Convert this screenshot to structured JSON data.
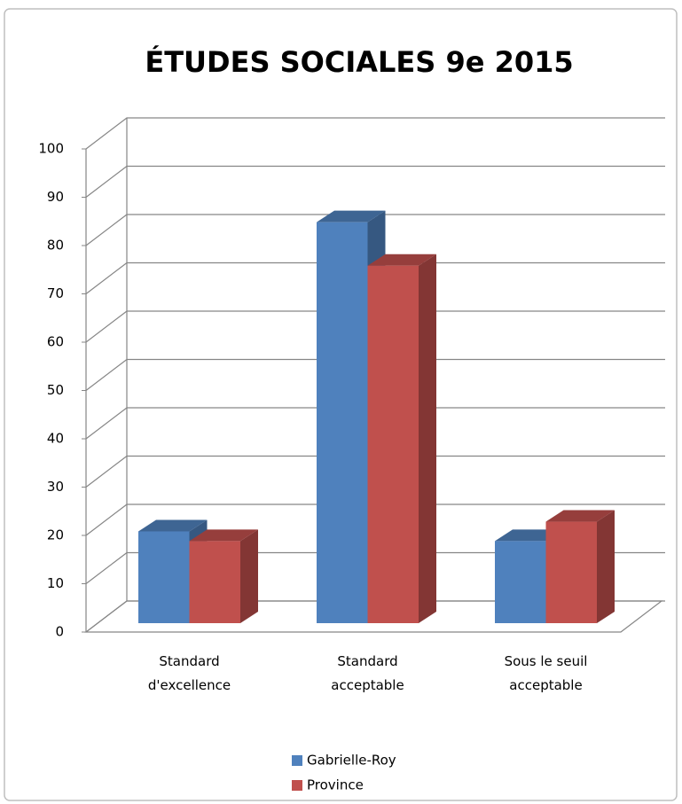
{
  "chart_data": {
    "type": "bar3d",
    "title": "ÉTUDES SOCIALES 9e 2015",
    "categories": [
      "Standard\nd'excellence",
      "Standard\nacceptable",
      "Sous le seuil\nacceptable"
    ],
    "series": [
      {
        "name": "Gabrielle-Roy",
        "color": "#4f81bd",
        "values": [
          19,
          83,
          17
        ]
      },
      {
        "name": "Province",
        "color": "#c0504d",
        "values": [
          17,
          74,
          21
        ]
      }
    ],
    "ylim": [
      0,
      100
    ],
    "yticks": [
      0,
      10,
      20,
      30,
      40,
      50,
      60,
      70,
      80,
      90,
      100
    ],
    "grid": true,
    "legend": "bottom"
  }
}
